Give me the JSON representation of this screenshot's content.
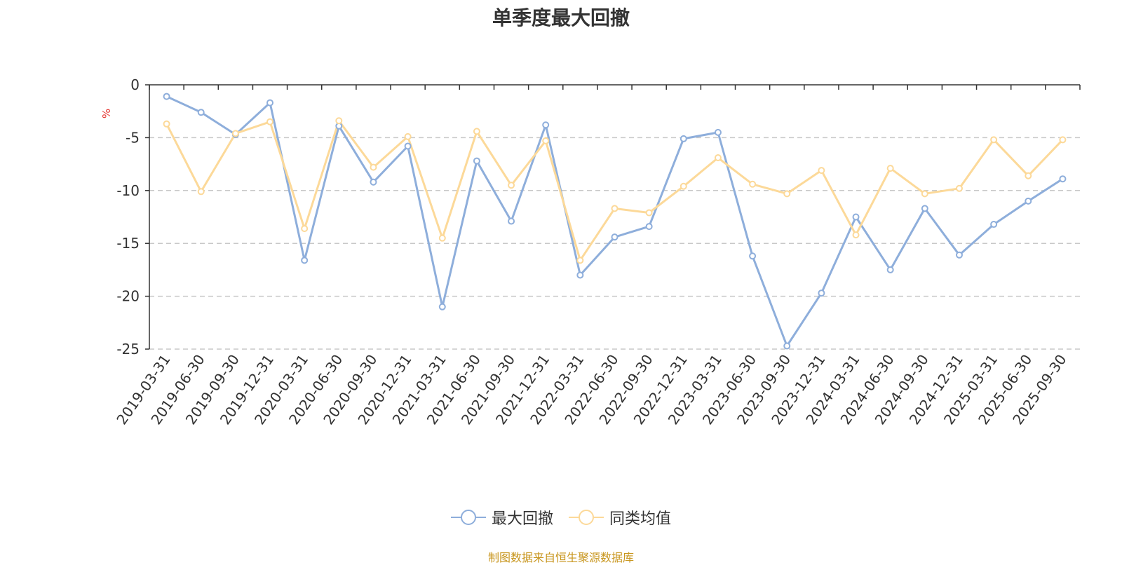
{
  "chart_data": {
    "type": "line",
    "title": "单季度最大回撤",
    "ylabel": "%",
    "ylim": [
      -25,
      0
    ],
    "yticks": [
      0,
      -5,
      -10,
      -15,
      -20,
      -25
    ],
    "grid": true,
    "legend_position": "bottom-center",
    "categories": [
      "2019-03-31",
      "2019-06-30",
      "2019-09-30",
      "2019-12-31",
      "2020-03-31",
      "2020-06-30",
      "2020-09-30",
      "2020-12-31",
      "2021-03-31",
      "2021-06-30",
      "2021-09-30",
      "2021-12-31",
      "2022-03-31",
      "2022-06-30",
      "2022-09-30",
      "2022-12-31",
      "2023-03-31",
      "2023-06-30",
      "2023-09-30",
      "2023-12-31",
      "2024-03-31",
      "2024-06-30",
      "2024-09-30",
      "2024-12-31",
      "2025-03-31",
      "2025-06-30",
      "2025-09-30"
    ],
    "series": [
      {
        "name": "最大回撤",
        "color": "#8eaedb",
        "values": [
          -1.1,
          -2.6,
          -4.7,
          -1.7,
          -16.6,
          -3.9,
          -9.2,
          -5.8,
          -21.0,
          -7.2,
          -12.9,
          -3.8,
          -18.0,
          -14.4,
          -13.4,
          -5.1,
          -4.5,
          -16.2,
          -24.7,
          -19.7,
          -12.5,
          -17.5,
          -11.7,
          -16.1,
          -13.2,
          -11.0,
          -8.9
        ]
      },
      {
        "name": "同类均值",
        "color": "#fcd999",
        "values": [
          -3.7,
          -10.1,
          -4.6,
          -3.5,
          -13.6,
          -3.4,
          -7.8,
          -4.9,
          -14.5,
          -4.4,
          -9.5,
          -5.3,
          -16.6,
          -11.7,
          -12.1,
          -9.6,
          -6.9,
          -9.4,
          -10.3,
          -8.1,
          -14.2,
          -7.9,
          -10.3,
          -9.8,
          -5.2,
          -8.6,
          -5.2
        ]
      }
    ]
  },
  "source_text": "制图数据来自恒生聚源数据库"
}
